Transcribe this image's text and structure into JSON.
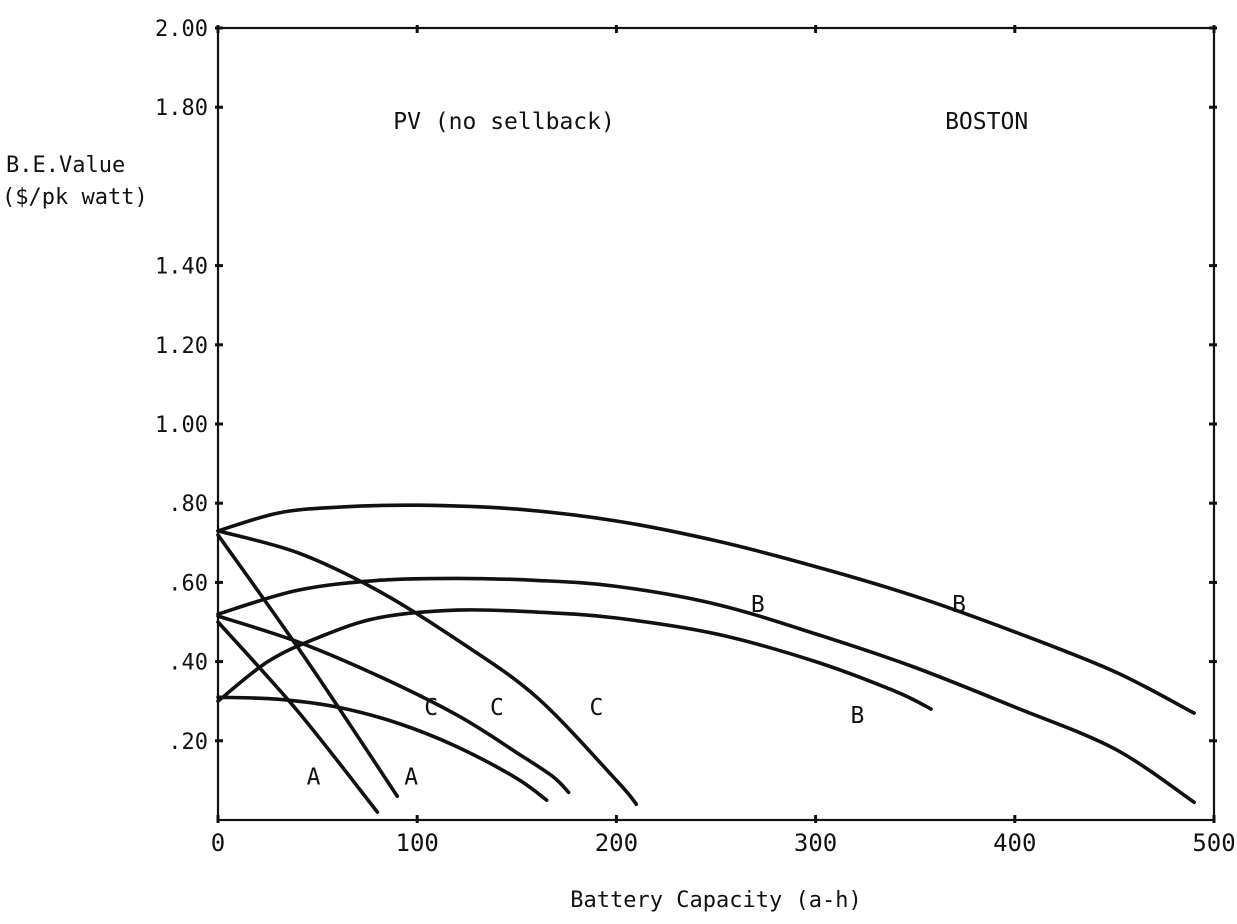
{
  "chart_data": {
    "type": "line",
    "title": "",
    "xlabel": "Battery Capacity (a-h)",
    "ylabel_lines": [
      "B.E.Value",
      "($/pk watt)"
    ],
    "xlim": [
      0,
      500
    ],
    "ylim": [
      0,
      2.0
    ],
    "x_ticks": [
      {
        "value": 0,
        "label": "0"
      },
      {
        "value": 100,
        "label": "100"
      },
      {
        "value": 200,
        "label": "200"
      },
      {
        "value": 300,
        "label": "300"
      },
      {
        "value": 400,
        "label": "400"
      },
      {
        "value": 500,
        "label": "500"
      }
    ],
    "y_ticks": [
      {
        "value": 2.0,
        "label": "2.00"
      },
      {
        "value": 1.8,
        "label": "1.80"
      },
      {
        "value": 1.4,
        "label": "1.40"
      },
      {
        "value": 1.2,
        "label": "1.20"
      },
      {
        "value": 1.0,
        "label": "1.00"
      },
      {
        "value": 0.8,
        "label": ".80"
      },
      {
        "value": 0.6,
        "label": ".60"
      },
      {
        "value": 0.4,
        "label": ".40"
      },
      {
        "value": 0.2,
        "label": ".20"
      }
    ],
    "grid": false,
    "legend": "none",
    "annotations": [
      {
        "text": "PV (no sellback)",
        "x": 88,
        "y": 1.745
      },
      {
        "text": "BOSTON",
        "x": 365,
        "y": 1.745
      }
    ],
    "series": [
      {
        "x": [
          0,
          30,
          60,
          100,
          150,
          200,
          250,
          300,
          350,
          400,
          450,
          490
        ],
        "y": [
          0.73,
          0.775,
          0.79,
          0.795,
          0.785,
          0.755,
          0.705,
          0.64,
          0.565,
          0.475,
          0.375,
          0.27
        ]
      },
      {
        "x": [
          0,
          40,
          80,
          120,
          160,
          200,
          250,
          300,
          350,
          400,
          450,
          490
        ],
        "y": [
          0.52,
          0.58,
          0.605,
          0.61,
          0.605,
          0.59,
          0.545,
          0.47,
          0.385,
          0.285,
          0.18,
          0.045
        ]
      },
      {
        "x": [
          0,
          25,
          50,
          80,
          120,
          160,
          200,
          250,
          300,
          340,
          358
        ],
        "y": [
          0.3,
          0.4,
          0.46,
          0.51,
          0.53,
          0.525,
          0.51,
          0.47,
          0.4,
          0.325,
          0.28
        ]
      },
      {
        "x": [
          0,
          40,
          80,
          120,
          160,
          200,
          210
        ],
        "y": [
          0.73,
          0.675,
          0.58,
          0.455,
          0.31,
          0.1,
          0.04
        ]
      },
      {
        "x": [
          0,
          40,
          80,
          120,
          150,
          168,
          176
        ],
        "y": [
          0.515,
          0.45,
          0.365,
          0.265,
          0.17,
          0.11,
          0.07
        ]
      },
      {
        "x": [
          0,
          30,
          60,
          90,
          120,
          150,
          165
        ],
        "y": [
          0.31,
          0.305,
          0.285,
          0.245,
          0.185,
          0.105,
          0.05
        ]
      },
      {
        "x": [
          0,
          45,
          90
        ],
        "y": [
          0.72,
          0.4,
          0.06
        ]
      },
      {
        "x": [
          0,
          40,
          80
        ],
        "y": [
          0.5,
          0.275,
          0.02
        ]
      }
    ],
    "curve_labels": [
      {
        "text": "A",
        "x": 48,
        "y": 0.09
      },
      {
        "text": "A",
        "x": 97,
        "y": 0.09
      },
      {
        "text": "C",
        "x": 107,
        "y": 0.265
      },
      {
        "text": "C",
        "x": 140,
        "y": 0.265
      },
      {
        "text": "C",
        "x": 190,
        "y": 0.265
      },
      {
        "text": "B",
        "x": 271,
        "y": 0.525
      },
      {
        "text": "B",
        "x": 372,
        "y": 0.525
      },
      {
        "text": "B",
        "x": 321,
        "y": 0.245
      }
    ]
  }
}
